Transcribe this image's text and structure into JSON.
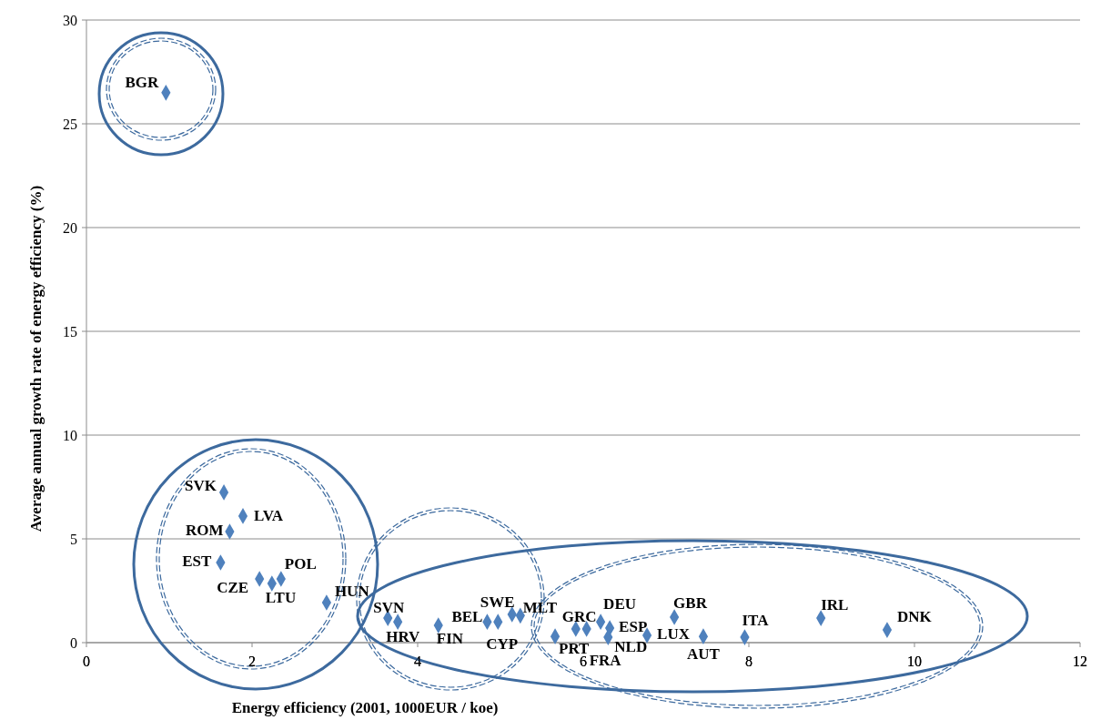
{
  "chart_data": {
    "type": "scatter",
    "xlabel": "Energy efficiency (2001, 1000EUR / koe)",
    "ylabel": "Average annual growth rate of energy efficiency (%)",
    "xlim": [
      0,
      12
    ],
    "xticks": [
      0,
      2,
      4,
      6,
      8,
      10,
      12
    ],
    "ylim": [
      0,
      30
    ],
    "yticks": [
      0,
      5,
      10,
      15,
      20,
      25,
      30
    ],
    "grid": "y",
    "marker": "diamond",
    "series": [
      {
        "color": "#4f81bd",
        "x": [
          0.96,
          1.66,
          1.89,
          1.73,
          1.62,
          2.09,
          2.24,
          2.35,
          2.9,
          3.64,
          3.76,
          4.25,
          4.84,
          4.97,
          5.14,
          5.24,
          5.66,
          5.91,
          6.04,
          6.21,
          6.32,
          6.3,
          6.77,
          7.1,
          7.45,
          7.95,
          8.87,
          9.67
        ],
        "values": [
          26.5,
          7.24,
          6.1,
          5.35,
          3.86,
          3.07,
          2.85,
          3.07,
          1.93,
          1.18,
          1.0,
          0.83,
          1.0,
          1.0,
          1.36,
          1.3,
          0.3,
          0.66,
          0.66,
          1.0,
          0.7,
          0.26,
          0.35,
          1.23,
          0.3,
          0.26,
          1.18,
          0.61
        ]
      }
    ],
    "annotations": [
      {
        "text": "BGR",
        "x": 0.96,
        "y": 26.5
      },
      {
        "text": "SVK",
        "x": 1.66,
        "y": 7.24
      },
      {
        "text": "LVA",
        "x": 1.89,
        "y": 6.1
      },
      {
        "text": "ROM",
        "x": 1.73,
        "y": 5.35
      },
      {
        "text": "EST",
        "x": 1.62,
        "y": 3.86
      },
      {
        "text": "CZE",
        "x": 2.09,
        "y": 3.07
      },
      {
        "text": "LTU",
        "x": 2.24,
        "y": 2.85
      },
      {
        "text": "POL",
        "x": 2.35,
        "y": 3.07
      },
      {
        "text": "HUN",
        "x": 2.9,
        "y": 1.93
      },
      {
        "text": "SVN",
        "x": 3.64,
        "y": 1.18
      },
      {
        "text": "HRV",
        "x": 3.76,
        "y": 1.0
      },
      {
        "text": "FIN",
        "x": 4.25,
        "y": 0.83
      },
      {
        "text": "BEL",
        "x": 4.84,
        "y": 1.0
      },
      {
        "text": "CYP",
        "x": 4.97,
        "y": 1.0
      },
      {
        "text": "SWE",
        "x": 5.14,
        "y": 1.36
      },
      {
        "text": "MLT",
        "x": 5.24,
        "y": 1.3
      },
      {
        "text": "PRT",
        "x": 5.66,
        "y": 0.3
      },
      {
        "text": "GRC",
        "x": 5.91,
        "y": 0.66
      },
      {
        "text": "FRA",
        "x": 6.04,
        "y": 0.66
      },
      {
        "text": "DEU",
        "x": 6.21,
        "y": 1.0
      },
      {
        "text": "ESP",
        "x": 6.32,
        "y": 0.7
      },
      {
        "text": "NLD",
        "x": 6.3,
        "y": 0.26
      },
      {
        "text": "LUX",
        "x": 6.77,
        "y": 0.35
      },
      {
        "text": "GBR",
        "x": 7.1,
        "y": 1.23
      },
      {
        "text": "AUT",
        "x": 7.45,
        "y": 0.3
      },
      {
        "text": "ITA",
        "x": 7.95,
        "y": 0.26
      },
      {
        "text": "IRL",
        "x": 8.87,
        "y": 1.18
      },
      {
        "text": "DNK",
        "x": 9.67,
        "y": 0.61
      }
    ]
  }
}
